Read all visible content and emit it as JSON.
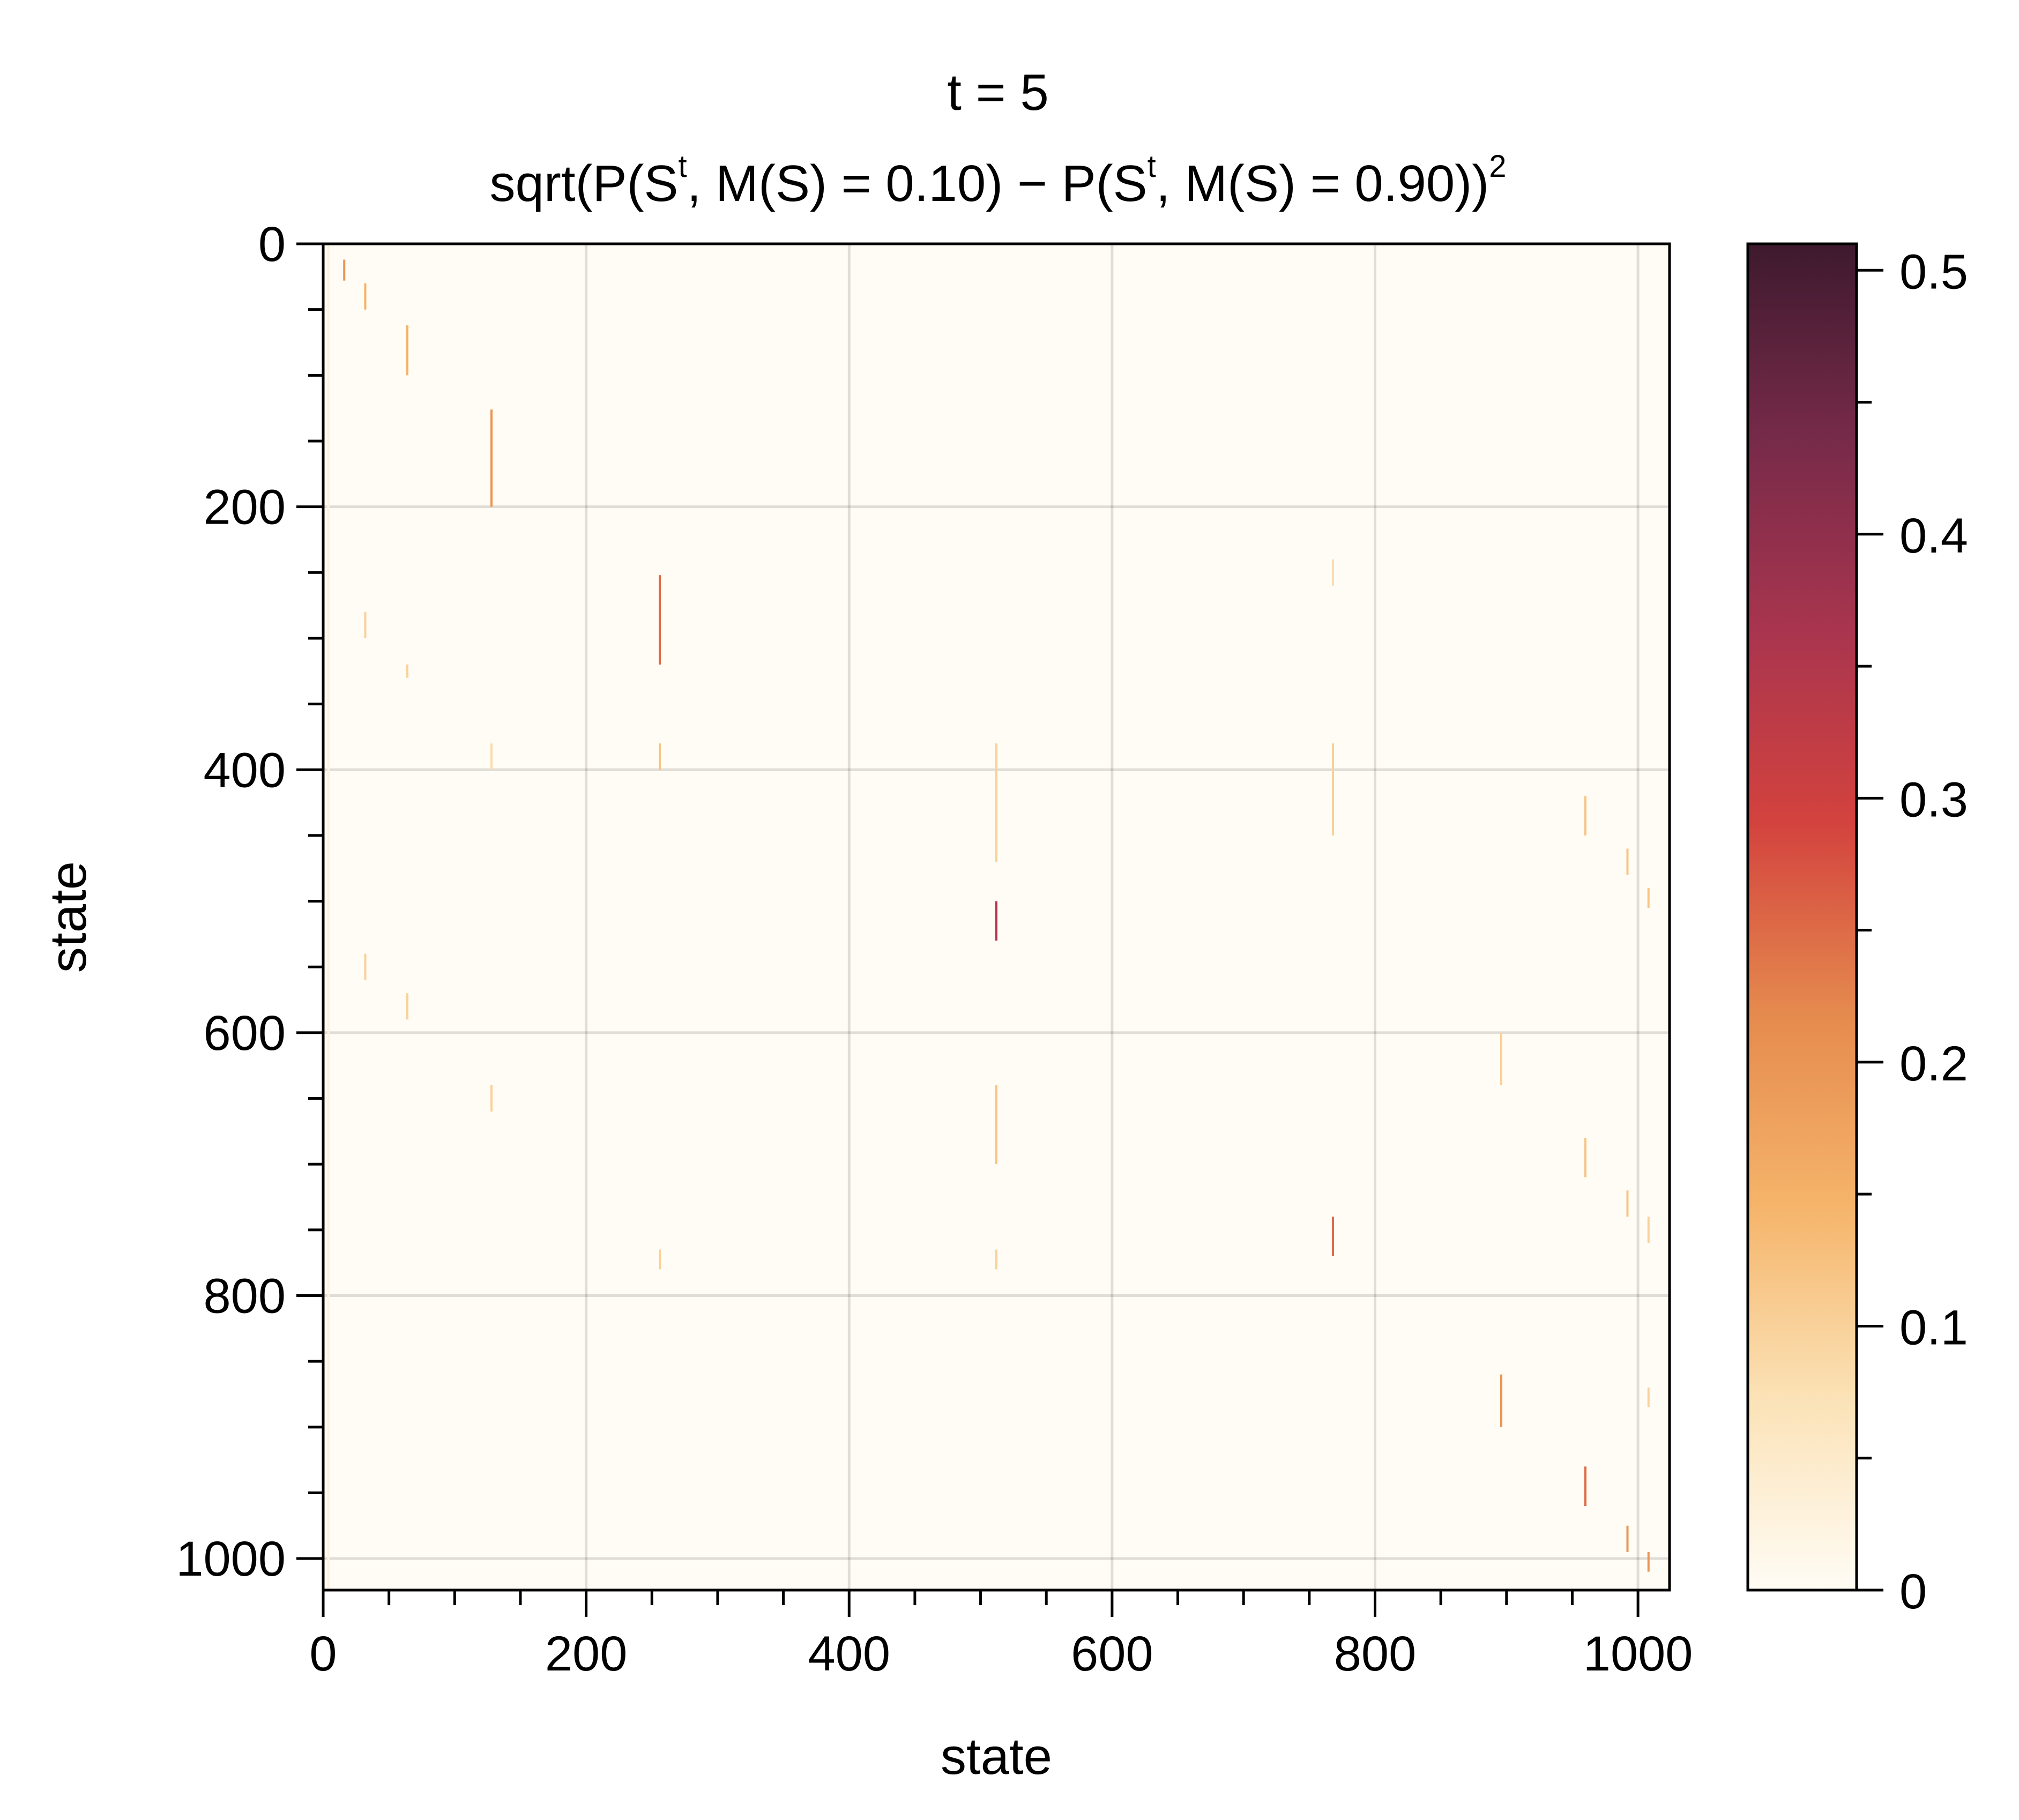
{
  "chart_data": {
    "type": "heatmap",
    "title": "t = 5",
    "subtitle_parts": {
      "prefix": "sqrt(P(S",
      "sup1": "t",
      "mid1": ", M(S) = 0.10) − P(S",
      "sup2": "t",
      "mid2": ", M(S) = 0.90))",
      "sup3": "2"
    },
    "xlabel": "state",
    "ylabel": "state",
    "xlim": [
      0,
      1024
    ],
    "ylim": [
      1024,
      0
    ],
    "x_ticks": [
      0,
      200,
      400,
      600,
      800,
      1000
    ],
    "y_ticks": [
      0,
      200,
      400,
      600,
      800,
      1000
    ],
    "x_tick_labels": [
      "0",
      "200",
      "400",
      "600",
      "800",
      "1000"
    ],
    "y_tick_labels": [
      "0",
      "200",
      "400",
      "600",
      "800",
      "1000"
    ],
    "grid": true,
    "colorbar": {
      "min": 0,
      "max": 0.51,
      "ticks": [
        0,
        0.1,
        0.2,
        0.3,
        0.4,
        0.5
      ],
      "tick_labels": [
        "0",
        "0.1",
        "0.2",
        "0.3",
        "0.4",
        "0.5"
      ],
      "colors": [
        "#fffcf5",
        "#fbe2b6",
        "#f5b46a",
        "#e58a4e",
        "#d3423e",
        "#a8354f",
        "#762a49",
        "#3e1a2e"
      ]
    },
    "streaks": [
      {
        "x": 16,
        "y0": 12,
        "y1": 28,
        "v": 0.2
      },
      {
        "x": 32,
        "y0": 30,
        "y1": 50,
        "v": 0.15
      },
      {
        "x": 64,
        "y0": 62,
        "y1": 100,
        "v": 0.15
      },
      {
        "x": 128,
        "y0": 126,
        "y1": 200,
        "v": 0.2
      },
      {
        "x": 256,
        "y0": 252,
        "y1": 320,
        "v": 0.25
      },
      {
        "x": 256,
        "y0": 380,
        "y1": 400,
        "v": 0.12
      },
      {
        "x": 512,
        "y0": 500,
        "y1": 530,
        "v": 0.35
      },
      {
        "x": 512,
        "y0": 380,
        "y1": 470,
        "v": 0.1
      },
      {
        "x": 512,
        "y0": 640,
        "y1": 700,
        "v": 0.12
      },
      {
        "x": 768,
        "y0": 740,
        "y1": 770,
        "v": 0.25
      },
      {
        "x": 768,
        "y0": 380,
        "y1": 450,
        "v": 0.1
      },
      {
        "x": 896,
        "y0": 860,
        "y1": 900,
        "v": 0.2
      },
      {
        "x": 896,
        "y0": 600,
        "y1": 640,
        "v": 0.1
      },
      {
        "x": 960,
        "y0": 930,
        "y1": 960,
        "v": 0.25
      },
      {
        "x": 960,
        "y0": 420,
        "y1": 450,
        "v": 0.12
      },
      {
        "x": 960,
        "y0": 680,
        "y1": 710,
        "v": 0.12
      },
      {
        "x": 992,
        "y0": 975,
        "y1": 995,
        "v": 0.2
      },
      {
        "x": 992,
        "y0": 460,
        "y1": 480,
        "v": 0.12
      },
      {
        "x": 992,
        "y0": 720,
        "y1": 740,
        "v": 0.12
      },
      {
        "x": 1008,
        "y0": 995,
        "y1": 1010,
        "v": 0.2
      },
      {
        "x": 1008,
        "y0": 490,
        "y1": 505,
        "v": 0.12
      },
      {
        "x": 1008,
        "y0": 740,
        "y1": 760,
        "v": 0.1
      },
      {
        "x": 1008,
        "y0": 870,
        "y1": 885,
        "v": 0.1
      },
      {
        "x": 4,
        "y0": 0,
        "y1": 1024,
        "v": 0.03
      },
      {
        "x": 32,
        "y0": 280,
        "y1": 300,
        "v": 0.1
      },
      {
        "x": 32,
        "y0": 540,
        "y1": 560,
        "v": 0.1
      },
      {
        "x": 64,
        "y0": 320,
        "y1": 330,
        "v": 0.1
      },
      {
        "x": 64,
        "y0": 570,
        "y1": 590,
        "v": 0.1
      },
      {
        "x": 128,
        "y0": 380,
        "y1": 400,
        "v": 0.08
      },
      {
        "x": 128,
        "y0": 640,
        "y1": 660,
        "v": 0.1
      },
      {
        "x": 256,
        "y0": 765,
        "y1": 780,
        "v": 0.1
      },
      {
        "x": 512,
        "y0": 765,
        "y1": 780,
        "v": 0.1
      },
      {
        "x": 768,
        "y0": 240,
        "y1": 260,
        "v": 0.08
      }
    ]
  }
}
